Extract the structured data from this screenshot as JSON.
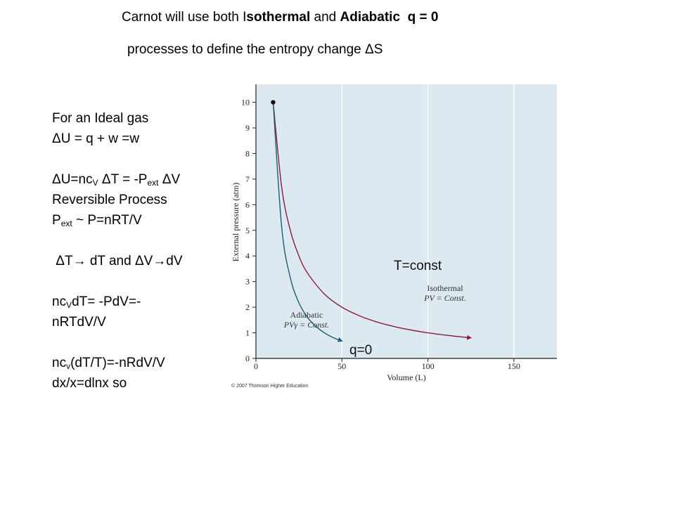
{
  "header": {
    "line1_pre": "Carnot will use both I",
    "line1_iso": "sothermal",
    "line1_and": " and ",
    "line1_adia": "Adiabatic",
    "line1_q": "q = 0",
    "line2": "processes to define the entropy change ΔS"
  },
  "derivation": {
    "l1": "For an Ideal gas",
    "l2": "ΔU = q + w =w",
    "l3_a": "ΔU=nc",
    "l3_v": "V",
    "l3_b": "ΔT = -P",
    "l3_ext": "ext",
    "l3_c": "ΔV",
    "l4": "Reversible Process",
    "l5_p": "P",
    "l5_ext": "ext",
    "l5_rest": " ~ P=nRT/V",
    "l6": "ΔT→ dT and ΔV→dV",
    "l7_a": "nc",
    "l7_v": "V",
    "l7_b": "dT= -PdV=-",
    "l8": "nRTdV/V",
    "l9_a": "nc",
    "l9_v": "v",
    "l9_b": "(dT/T)=-nRdV/V",
    "l10": "dx/x=dlnx  so"
  },
  "colors": {
    "plot_bg": "#dde9f1",
    "isothermal": "#8b1a46",
    "adiabatic": "#1d5c73",
    "axis": "#222222"
  },
  "chart_data": {
    "type": "line",
    "xlabel": "Volume (L)",
    "ylabel": "External pressure (atm)",
    "xlim": [
      0,
      175
    ],
    "ylim": [
      0,
      10.7
    ],
    "x_ticks": [
      0,
      50,
      100,
      150
    ],
    "y_ticks": [
      0,
      1,
      2,
      3,
      4,
      5,
      6,
      7,
      8,
      9,
      10
    ],
    "series": [
      {
        "name_line1": "Isothermal",
        "name_line2": "PV = Const.",
        "x": [
          10,
          15,
          20,
          25,
          30,
          40,
          50,
          60,
          70,
          80,
          90,
          100,
          110,
          125
        ],
        "y": [
          10,
          6.67,
          5.0,
          4.0,
          3.33,
          2.5,
          2.0,
          1.67,
          1.43,
          1.25,
          1.11,
          1.0,
          0.91,
          0.8
        ]
      },
      {
        "name_line1": "Adiabatic",
        "name_line2": "PVγ = Const.",
        "x": [
          10,
          15,
          20,
          25,
          30,
          35,
          40,
          45,
          50
        ],
        "y": [
          10,
          5.1,
          3.15,
          2.17,
          1.6,
          1.24,
          0.99,
          0.81,
          0.68
        ]
      }
    ],
    "start_point": {
      "x": 10,
      "y": 10
    },
    "annotations": {
      "isothermal_callout": "T=const",
      "adiabatic_callout": "q=0"
    },
    "copyright": "© 2007 Thomson Higher Education"
  }
}
